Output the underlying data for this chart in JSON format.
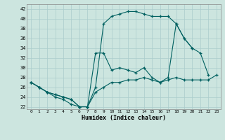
{
  "xlabel": "Humidex (Indice chaleur)",
  "xlim": [
    -0.5,
    23.5
  ],
  "ylim": [
    21.5,
    43
  ],
  "yticks": [
    22,
    24,
    26,
    28,
    30,
    32,
    34,
    36,
    38,
    40,
    42
  ],
  "xticks": [
    0,
    1,
    2,
    3,
    4,
    5,
    6,
    7,
    8,
    9,
    10,
    11,
    12,
    13,
    14,
    15,
    16,
    17,
    18,
    19,
    20,
    21,
    22,
    23
  ],
  "background_color": "#cce5df",
  "grid_color": "#aacccc",
  "line_color": "#006060",
  "line1_x": [
    0,
    1,
    2,
    3,
    4,
    5,
    6,
    7,
    8,
    9,
    10,
    11,
    12,
    13,
    14,
    15,
    16,
    17,
    18,
    19,
    20,
    21,
    22,
    23
  ],
  "line1_y": [
    27,
    26,
    25,
    24,
    23.5,
    22.5,
    22,
    22,
    25,
    26,
    27,
    27,
    27.5,
    27.5,
    28,
    27.5,
    27,
    27.5,
    28,
    27.5,
    27.5,
    27.5,
    27.5,
    28.5
  ],
  "line2_x": [
    0,
    1,
    2,
    3,
    4,
    5,
    6,
    7,
    8,
    9,
    10,
    11,
    12,
    13,
    14,
    15,
    16,
    17,
    18,
    19,
    20,
    21,
    22
  ],
  "line2_y": [
    27,
    26,
    25,
    24.5,
    24,
    23.5,
    22,
    22,
    26,
    39,
    40.5,
    41,
    41.5,
    41.5,
    41,
    40.5,
    40.5,
    40.5,
    39,
    36,
    34,
    33,
    28.5
  ],
  "line3_x": [
    0,
    1,
    2,
    3,
    4,
    5,
    6,
    7,
    8,
    9,
    10,
    11,
    12,
    13,
    14,
    15,
    16,
    17,
    18,
    19,
    20
  ],
  "line3_y": [
    27,
    26,
    25,
    24.5,
    24,
    23.5,
    22,
    22,
    33,
    33,
    29.5,
    30,
    29.5,
    29,
    30,
    28,
    27,
    28,
    39,
    36,
    34
  ]
}
